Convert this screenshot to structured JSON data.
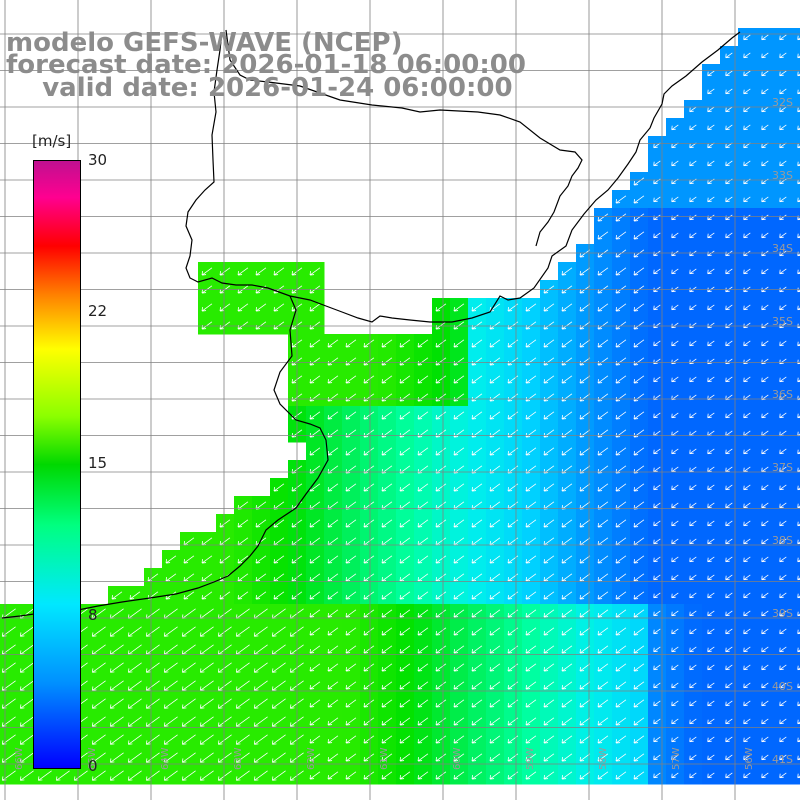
{
  "title": {
    "line1": "modelo GEFS-WAVE (NCEP)",
    "line2": "forecast date: 2026-01-18 06:00:00",
    "line3": "    valid date: 2026-01-24 06:00:00"
  },
  "colorbar": {
    "unit": "[m/s]",
    "ticks": [
      "30",
      "22",
      "15",
      "8",
      "0"
    ],
    "tick_values": [
      30,
      22,
      15,
      8,
      0
    ]
  },
  "lat_labels": [
    "32S",
    "33S",
    "34S",
    "35S",
    "36S",
    "37S",
    "38S",
    "39S",
    "40S",
    "41S"
  ],
  "lon_labels": [
    "66W",
    "65W",
    "64W",
    "63W",
    "62W",
    "61W",
    "60W",
    "59W",
    "58W",
    "57W",
    "56W"
  ],
  "wind_direction": "from northeast",
  "colors": {
    "land": "#ffffff",
    "grid": "#808080",
    "coast": "#000000",
    "arrows": "#ffffff",
    "title": "#8c8c8c"
  }
}
